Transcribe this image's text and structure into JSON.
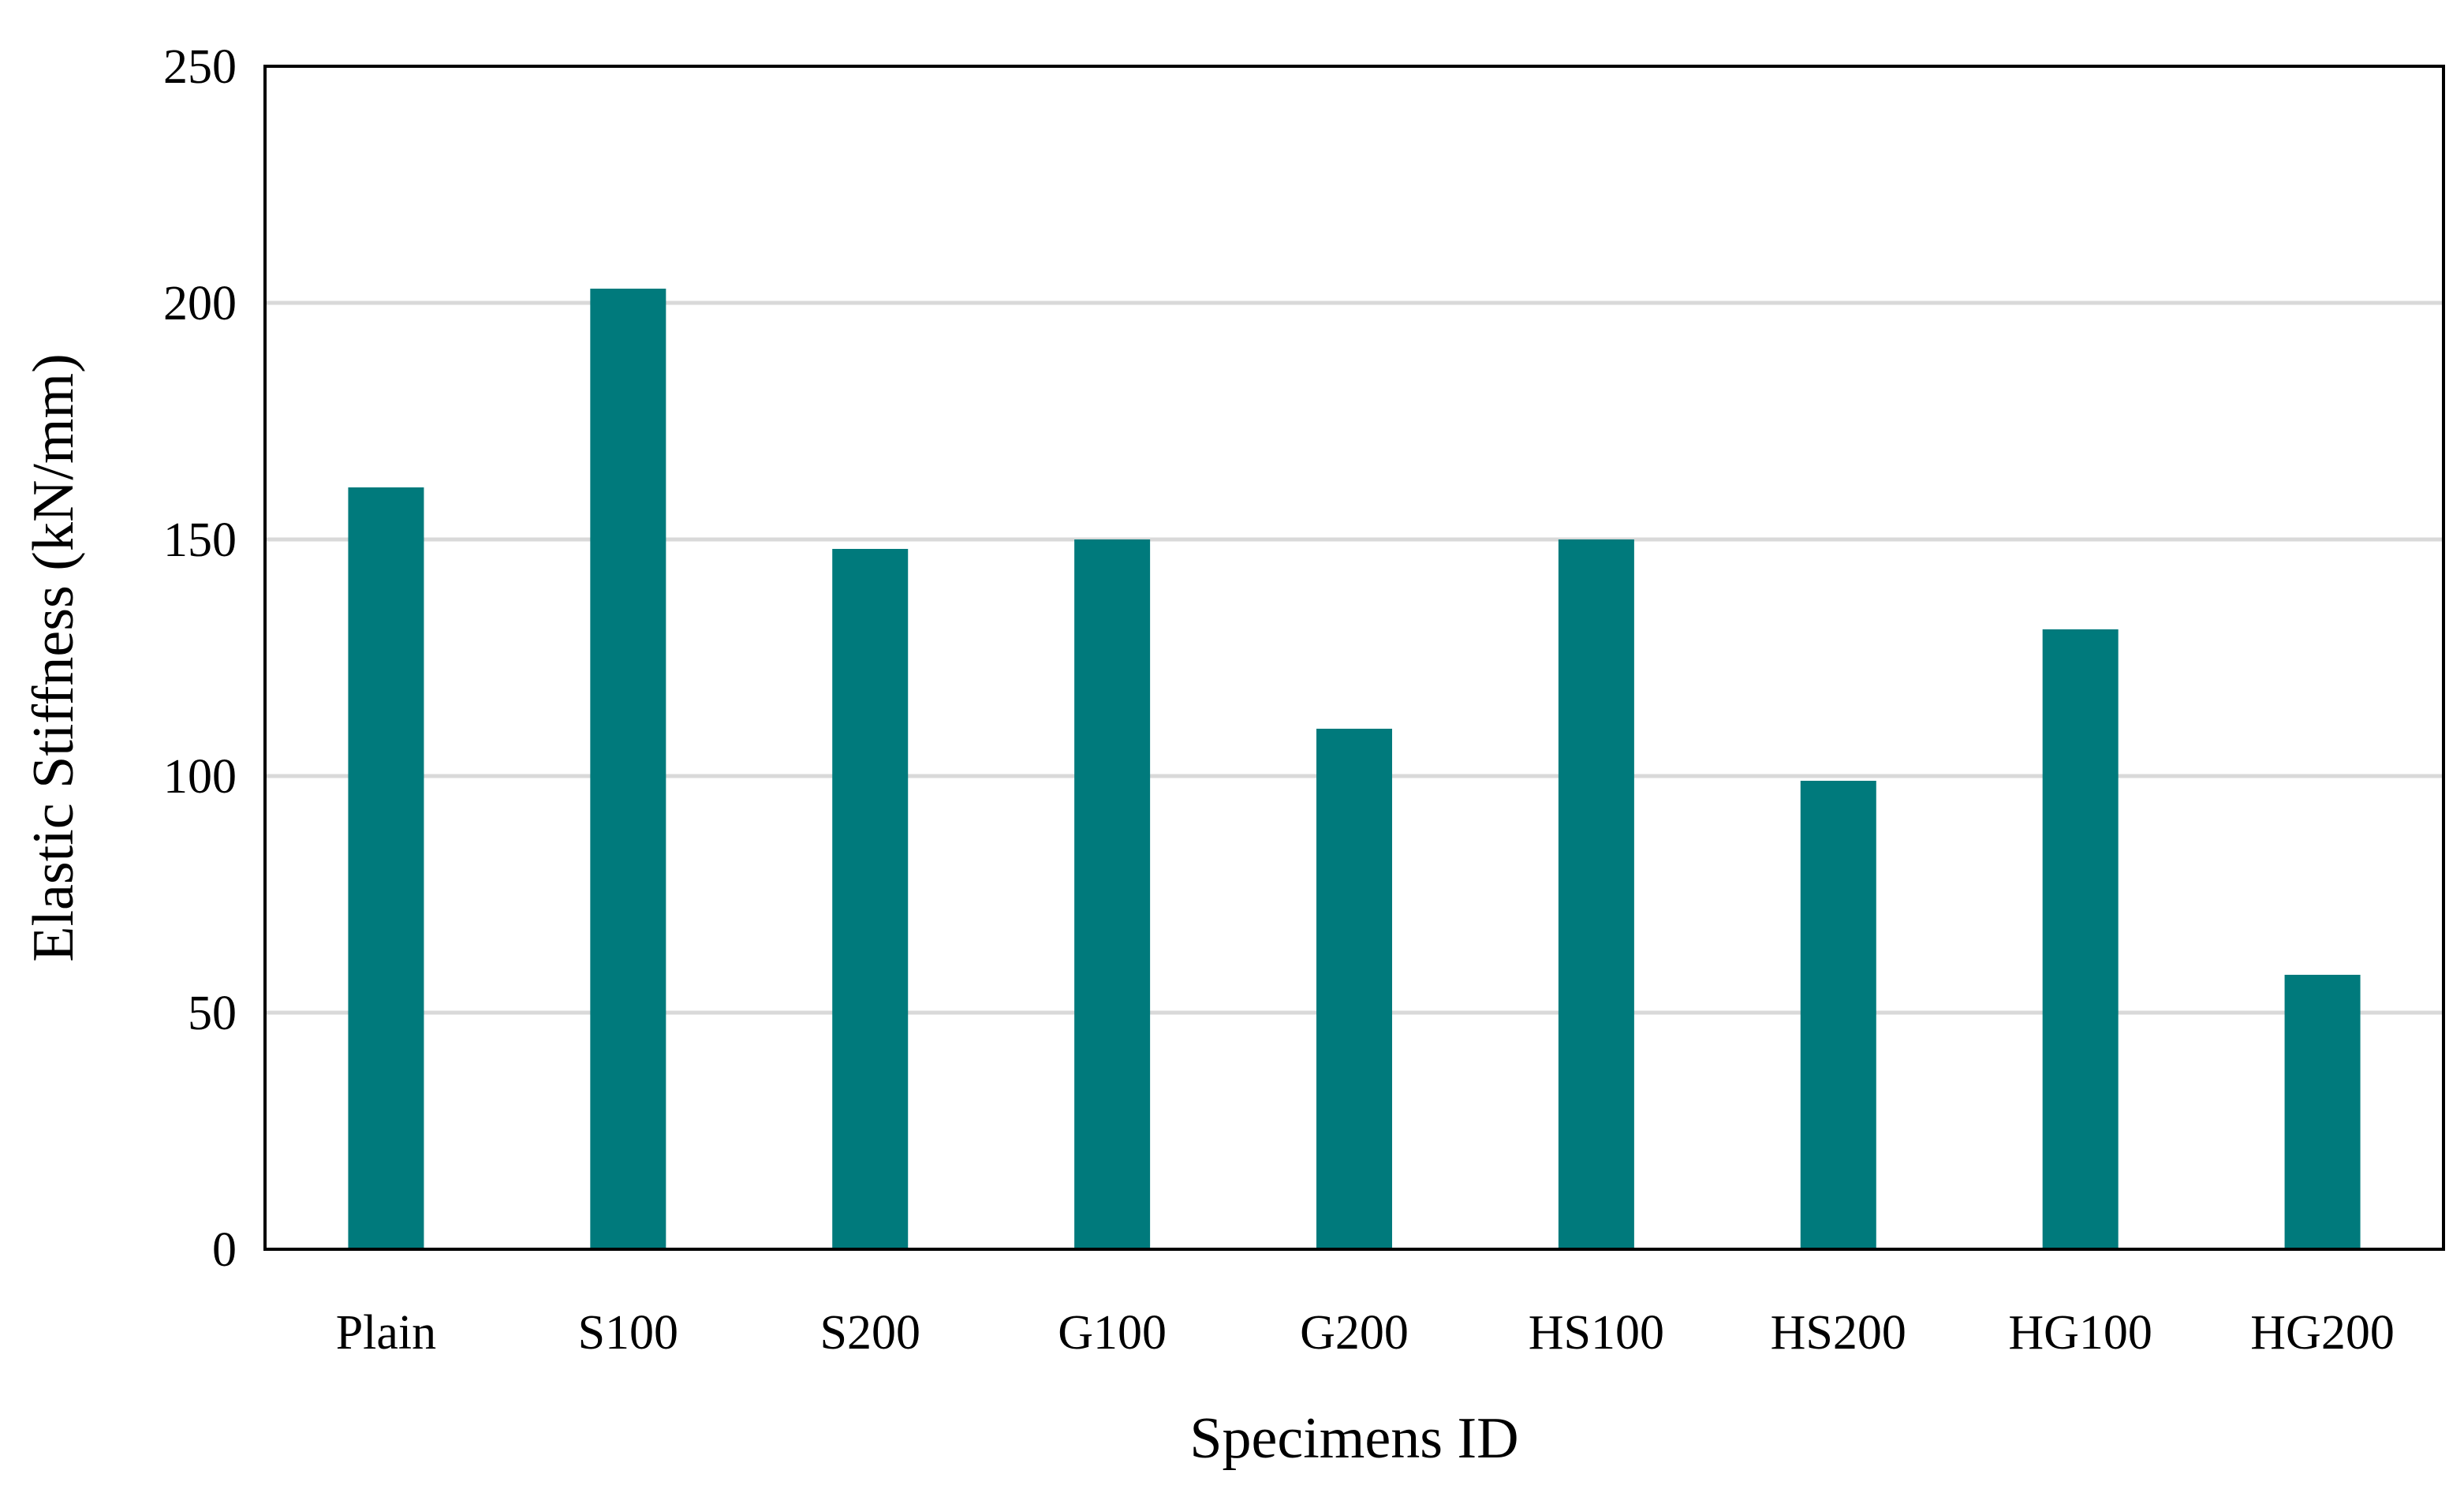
{
  "chart_data": {
    "type": "bar",
    "title": "",
    "xlabel": "Specimens ID",
    "ylabel": "Elastic Stiffness (kN/mm)",
    "categories": [
      "Plain",
      "S100",
      "S200",
      "G100",
      "G200",
      "HS100",
      "HS200",
      "HG100",
      "HG200"
    ],
    "values": [
      161,
      203,
      148,
      150,
      110,
      150,
      99,
      131,
      58
    ],
    "ylim": [
      0,
      250
    ],
    "yticks": [
      0,
      50,
      100,
      150,
      200,
      250
    ],
    "grid": true,
    "legend": "none",
    "colors": {
      "bar": "#007A7C",
      "grid": "#D9D9D9",
      "axis": "#000000"
    }
  }
}
